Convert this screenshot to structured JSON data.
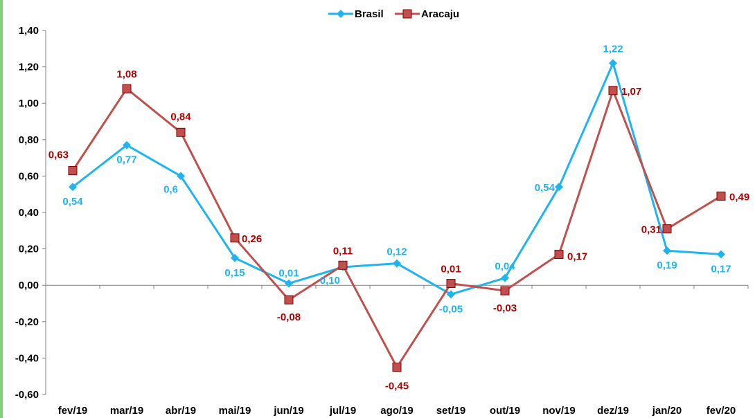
{
  "chart_data": {
    "type": "line",
    "title": "",
    "xlabel": "",
    "ylabel": "",
    "categories": [
      "fev/19",
      "mar/19",
      "abr/19",
      "mai/19",
      "jun/19",
      "jul/19",
      "ago/19",
      "set/19",
      "out/19",
      "nov/19",
      "dez/19",
      "jan/20",
      "fev/20"
    ],
    "ylim": [
      -0.6,
      1.4
    ],
    "yticks": [
      -0.6,
      -0.4,
      -0.2,
      0,
      0.2,
      0.4,
      0.6,
      0.8,
      1.0,
      1.2,
      1.4
    ],
    "ytick_labels": [
      "-0,60",
      "-0,40",
      "-0,20",
      "0,00",
      "0,20",
      "0,40",
      "0,60",
      "0,80",
      "1,00",
      "1,20",
      "1,40"
    ],
    "grid": false,
    "legend_position": "top-center",
    "series": [
      {
        "name": "Brasil",
        "color": "#1fb4f0",
        "marker": "diamond",
        "values": [
          0.54,
          0.77,
          0.6,
          0.15,
          0.01,
          0.1,
          0.12,
          -0.05,
          0.04,
          0.54,
          1.22,
          0.19,
          0.17
        ],
        "labels": [
          "0,54",
          "0,77",
          "0,6",
          "0,15",
          "0,01",
          "0,10",
          "0,12",
          "-0,05",
          "0,04",
          "0,54",
          "1,22",
          "0,19",
          "0,17"
        ]
      },
      {
        "name": "Aracaju",
        "color": "#c0504d",
        "label_color": "#b00000",
        "marker": "square",
        "values": [
          0.63,
          1.08,
          0.84,
          0.26,
          -0.08,
          0.11,
          -0.45,
          0.01,
          -0.03,
          0.17,
          1.07,
          0.31,
          0.49
        ],
        "labels": [
          "0,63",
          "1,08",
          "0,84",
          "0,26",
          "-0,08",
          "0,11",
          "-0,45",
          "0,01",
          "-0,03",
          "0,17",
          "1,07",
          "0,31",
          "0,49"
        ]
      }
    ]
  }
}
